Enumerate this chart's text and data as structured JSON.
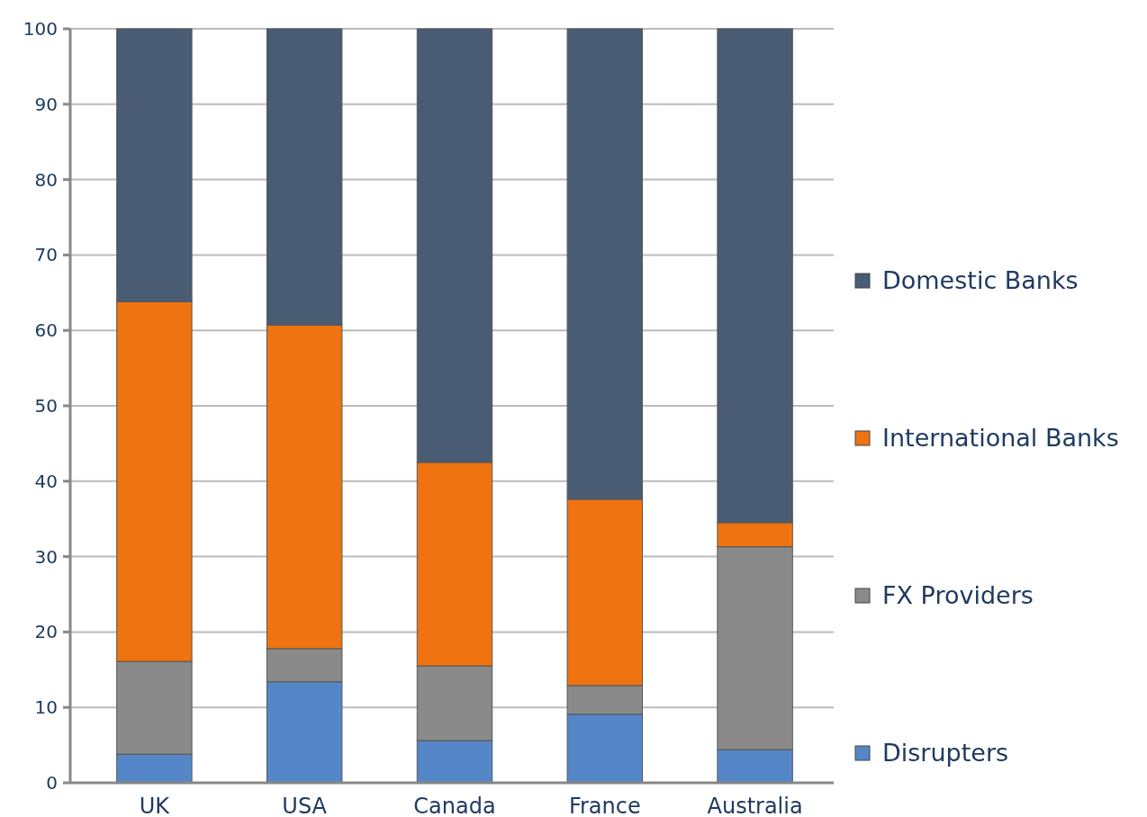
{
  "chart_data": {
    "type": "bar",
    "stacked": true,
    "categories": [
      "UK",
      "USA",
      "Canada",
      "France",
      "Australia"
    ],
    "series": [
      {
        "name": "Disrupters",
        "color": "#5587c8",
        "values": [
          3.8,
          13.4,
          5.6,
          9.1,
          4.4
        ]
      },
      {
        "name": "FX Providers",
        "color": "#8a8a8a",
        "values": [
          12.3,
          4.4,
          9.9,
          3.8,
          26.9
        ]
      },
      {
        "name": "International Banks",
        "color": "#ef7411",
        "values": [
          47.7,
          42.9,
          27.0,
          24.7,
          3.2
        ]
      },
      {
        "name": "Domestic Banks",
        "color": "#4a5b74",
        "values": [
          36.2,
          39.3,
          57.5,
          62.4,
          65.5
        ]
      }
    ],
    "ylim": [
      0,
      100
    ],
    "yticks": [
      0,
      10,
      20,
      30,
      40,
      50,
      60,
      70,
      80,
      90,
      100
    ],
    "grid": "y",
    "legend": "right"
  }
}
